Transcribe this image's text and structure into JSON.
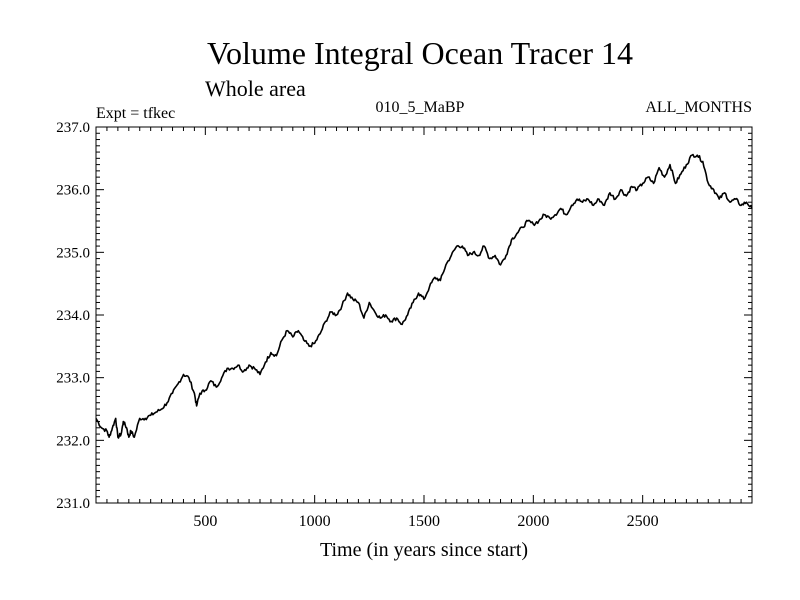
{
  "chart_data": {
    "type": "line",
    "title": "Volume Integral Ocean Tracer 14",
    "subtitle": "Whole area",
    "annotations": {
      "left": "Expt = tfkec",
      "center": "010_5_MaBP",
      "right": "ALL_MONTHS"
    },
    "xlabel": "Time (in years since start)",
    "ylabel": "",
    "xlim": [
      0,
      3000
    ],
    "ylim": [
      231.0,
      237.0
    ],
    "x_ticks": [
      500,
      1000,
      1500,
      2000,
      2500
    ],
    "x_tick_labels": [
      "500",
      "1000",
      "1500",
      "2000",
      "2500"
    ],
    "y_ticks": [
      231.0,
      232.0,
      233.0,
      234.0,
      235.0,
      236.0,
      237.0
    ],
    "y_tick_labels": [
      "231.0",
      "232.0",
      "233.0",
      "234.0",
      "235.0",
      "236.0",
      "237.0"
    ],
    "grid": false,
    "legend": "none",
    "line_color": "#000000",
    "series": [
      {
        "x": [
          0,
          25,
          50,
          60,
          75,
          90,
          100,
          115,
          125,
          140,
          150,
          160,
          175,
          200,
          225,
          250,
          275,
          300,
          325,
          350,
          375,
          400,
          425,
          450,
          460,
          475,
          500,
          525,
          550,
          575,
          600,
          625,
          650,
          675,
          700,
          725,
          750,
          775,
          800,
          825,
          850,
          875,
          900,
          925,
          950,
          975,
          1000,
          1025,
          1050,
          1075,
          1100,
          1125,
          1150,
          1175,
          1200,
          1225,
          1250,
          1275,
          1300,
          1325,
          1350,
          1375,
          1400,
          1425,
          1450,
          1475,
          1500,
          1525,
          1550,
          1575,
          1600,
          1625,
          1650,
          1675,
          1700,
          1725,
          1750,
          1775,
          1800,
          1825,
          1850,
          1875,
          1900,
          1925,
          1950,
          1975,
          2000,
          2025,
          2050,
          2075,
          2100,
          2125,
          2150,
          2175,
          2200,
          2225,
          2250,
          2275,
          2300,
          2325,
          2350,
          2375,
          2400,
          2425,
          2450,
          2475,
          2500,
          2525,
          2550,
          2575,
          2600,
          2625,
          2650,
          2675,
          2700,
          2725,
          2750,
          2775,
          2800,
          2825,
          2850,
          2875,
          2900,
          2925,
          2950,
          2975,
          3000
        ],
        "y": [
          232.35,
          232.2,
          232.15,
          232.05,
          232.2,
          232.35,
          232.05,
          232.1,
          232.3,
          232.2,
          232.05,
          232.15,
          232.05,
          232.35,
          232.35,
          232.4,
          232.45,
          232.5,
          232.6,
          232.75,
          232.9,
          233.05,
          233.0,
          232.75,
          232.55,
          232.75,
          232.8,
          232.95,
          232.85,
          233.0,
          233.15,
          233.15,
          233.2,
          233.1,
          233.2,
          233.15,
          233.05,
          233.25,
          233.4,
          233.35,
          233.6,
          233.75,
          233.65,
          233.75,
          233.6,
          233.5,
          233.55,
          233.7,
          233.9,
          234.05,
          234.0,
          234.15,
          234.35,
          234.25,
          234.2,
          233.95,
          234.2,
          234.05,
          233.95,
          234.0,
          233.9,
          233.95,
          233.85,
          234.0,
          234.2,
          234.35,
          234.25,
          234.45,
          234.6,
          234.55,
          234.8,
          234.95,
          235.1,
          235.1,
          234.95,
          235.0,
          234.95,
          235.1,
          234.9,
          234.95,
          234.8,
          234.95,
          235.2,
          235.3,
          235.4,
          235.5,
          235.45,
          235.5,
          235.6,
          235.55,
          235.6,
          235.7,
          235.6,
          235.75,
          235.85,
          235.8,
          235.85,
          235.75,
          235.85,
          235.75,
          235.95,
          235.85,
          236.0,
          235.9,
          236.05,
          236.0,
          236.1,
          236.2,
          236.1,
          236.35,
          236.2,
          236.4,
          236.1,
          236.25,
          236.4,
          236.55,
          236.55,
          236.45,
          236.1,
          236.0,
          235.85,
          235.95,
          235.8,
          235.85,
          235.75,
          235.8,
          235.7
        ]
      }
    ]
  }
}
